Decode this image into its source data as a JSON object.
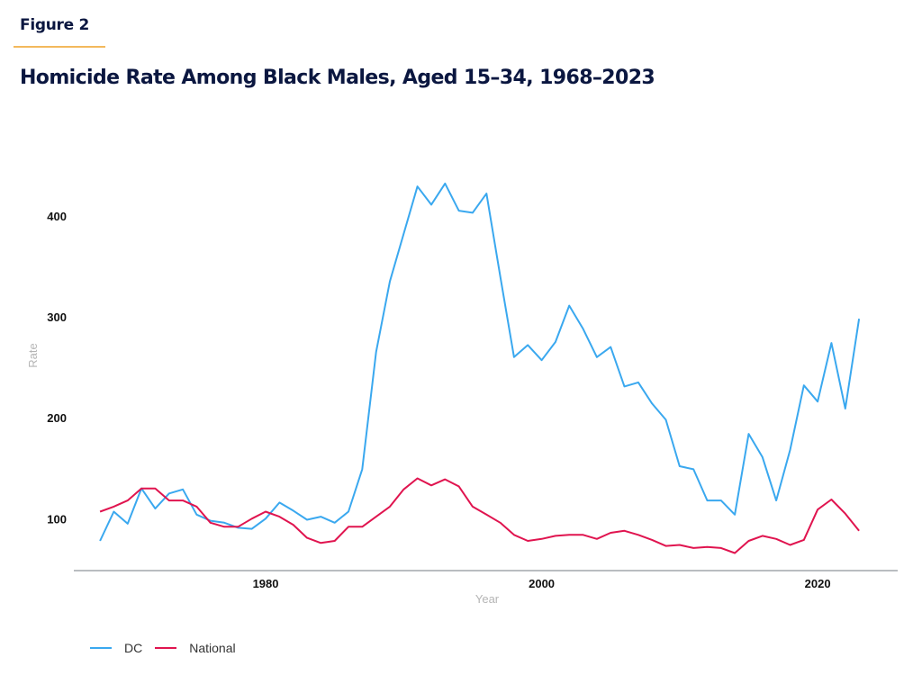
{
  "figure_label": "Figure 2",
  "chart_data": {
    "type": "line",
    "title": "Homicide Rate Among Black Males, Aged 15–34, 1968–2023",
    "xlabel": "Year",
    "ylabel": "Rate",
    "xlim": [
      1966.1,
      2025.8
    ],
    "ylim": [
      48.6,
      480
    ],
    "xticks": [
      1980,
      2000,
      2020
    ],
    "xtick_labels": [
      "1980",
      "2000",
      "2020"
    ],
    "yticks": [
      100,
      200,
      300,
      400
    ],
    "ytick_labels": [
      "100",
      "200",
      "300",
      "400"
    ],
    "grid": false,
    "legend_position": "bottom-left",
    "x": [
      1968,
      1969,
      1970,
      1971,
      1972,
      1973,
      1974,
      1975,
      1976,
      1977,
      1978,
      1979,
      1980,
      1981,
      1982,
      1983,
      1984,
      1985,
      1986,
      1987,
      1988,
      1989,
      1990,
      1991,
      1992,
      1993,
      1994,
      1995,
      1996,
      1997,
      1998,
      1999,
      2000,
      2001,
      2002,
      2003,
      2004,
      2005,
      2006,
      2007,
      2008,
      2009,
      2010,
      2011,
      2012,
      2013,
      2014,
      2015,
      2016,
      2017,
      2018,
      2019,
      2020,
      2021,
      2022,
      2023
    ],
    "series": [
      {
        "name": "DC",
        "color": "#3aa8ef",
        "values": [
          78,
          107,
          95,
          130,
          110,
          125,
          129,
          104,
          98,
          96,
          91,
          90,
          100,
          116,
          108,
          99,
          102,
          96,
          107,
          149,
          265,
          335,
          382,
          429,
          411,
          432,
          405,
          403,
          422,
          340,
          260,
          272,
          257,
          275,
          311,
          288,
          260,
          270,
          231,
          235,
          214,
          198,
          152,
          149,
          118,
          118,
          104,
          184,
          161,
          118,
          168,
          232,
          216,
          274,
          209,
          298
        ]
      },
      {
        "name": "National",
        "color": "#e0144f",
        "values": [
          107,
          112,
          118,
          130,
          130,
          118,
          118,
          112,
          96,
          92,
          92,
          100,
          107,
          102,
          94,
          81,
          76,
          78,
          92,
          92,
          102,
          112,
          129,
          140,
          133,
          139,
          132,
          112,
          104,
          96,
          84,
          78,
          80,
          83,
          84,
          84,
          80,
          86,
          88,
          84,
          79,
          73,
          74,
          71,
          72,
          71,
          66,
          78,
          83,
          80,
          74,
          79,
          109,
          119,
          105,
          88
        ]
      }
    ]
  }
}
